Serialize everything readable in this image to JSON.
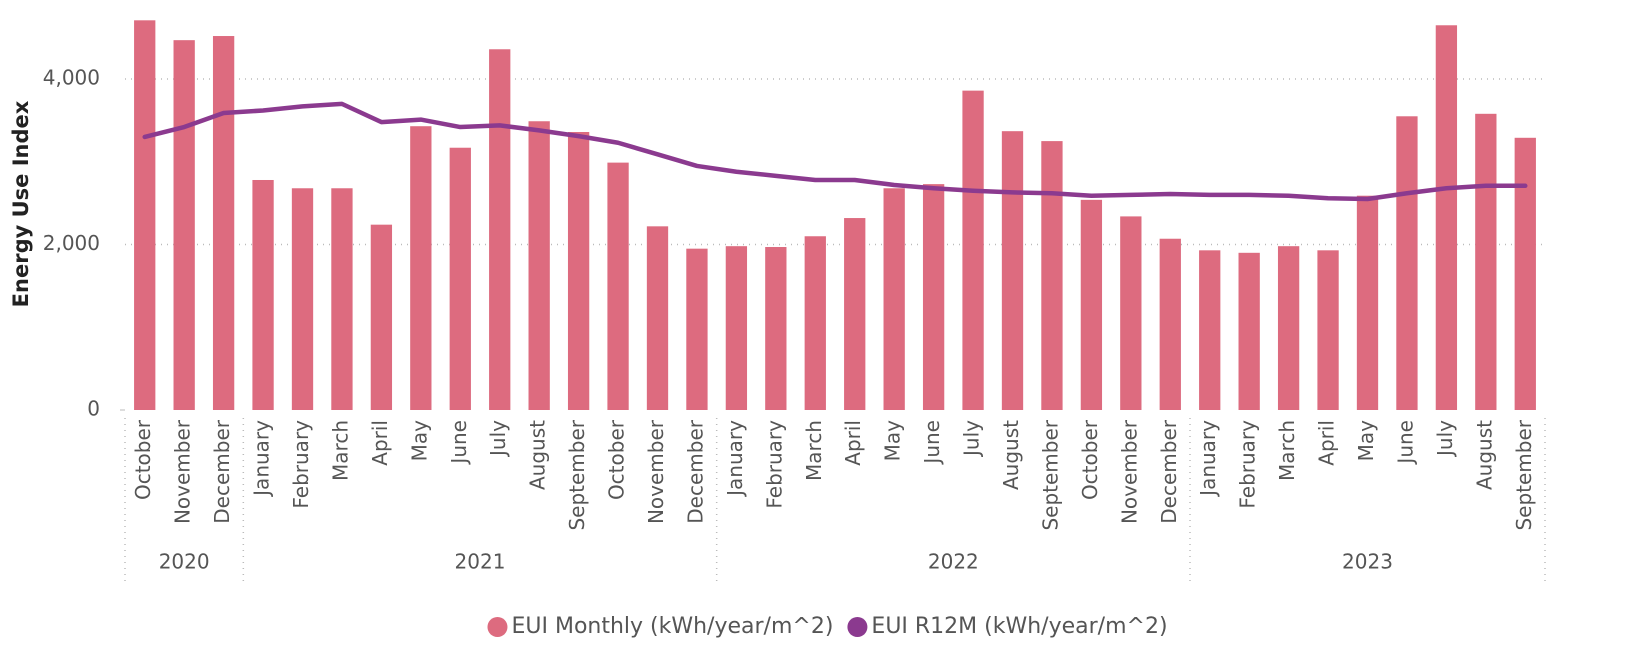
{
  "chart_data": {
    "type": "bar_line",
    "y_axis_label": "Energy Use Index",
    "groups": [
      {
        "label": "2020",
        "categories": [
          "October",
          "November",
          "December"
        ]
      },
      {
        "label": "2021",
        "categories": [
          "January",
          "February",
          "March",
          "April",
          "May",
          "June",
          "July",
          "August",
          "September",
          "October",
          "November",
          "December"
        ]
      },
      {
        "label": "2022",
        "categories": [
          "January",
          "February",
          "March",
          "April",
          "May",
          "June",
          "July",
          "August",
          "September",
          "October",
          "November",
          "December"
        ]
      },
      {
        "label": "2023",
        "categories": [
          "January",
          "February",
          "March",
          "April",
          "May",
          "June",
          "July",
          "August",
          "September"
        ]
      }
    ],
    "series": [
      {
        "name": "EUI Monthly (kWh/year/m^2)",
        "kind": "bar",
        "color": "#dd6b7f",
        "values": [
          4710,
          4470,
          4520,
          2780,
          2680,
          2680,
          2240,
          3430,
          3170,
          4360,
          3490,
          3360,
          2990,
          2220,
          1950,
          1980,
          1970,
          2100,
          2320,
          2680,
          2730,
          3860,
          3370,
          3250,
          2540,
          2340,
          2070,
          1930,
          1900,
          1980,
          1930,
          2590,
          3550,
          4650,
          3580,
          3290
        ]
      },
      {
        "name": "EUI R12M (kWh/year/m^2)",
        "kind": "line",
        "color": "#8b3a8f",
        "values": [
          3300,
          3420,
          3590,
          3620,
          3670,
          3700,
          3480,
          3510,
          3420,
          3440,
          3380,
          3310,
          3230,
          3090,
          2950,
          2880,
          2830,
          2780,
          2780,
          2720,
          2680,
          2650,
          2630,
          2620,
          2590,
          2600,
          2610,
          2600,
          2600,
          2590,
          2560,
          2550,
          2620,
          2680,
          2710,
          2710
        ]
      }
    ],
    "ylim": [
      0,
      4750
    ],
    "yticks": [
      0,
      {
        "value": 2000,
        "label": "2,000"
      },
      {
        "value": 4000,
        "label": "4,000"
      }
    ],
    "grid": true,
    "legend": "bottom"
  }
}
